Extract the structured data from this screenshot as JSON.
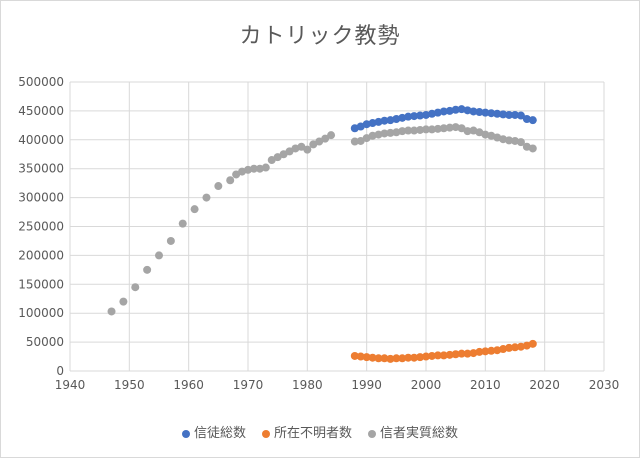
{
  "chart_data": {
    "type": "scatter",
    "title": "カトリック教勢",
    "xlabel": "",
    "ylabel": "",
    "xlim": [
      1940,
      2030
    ],
    "ylim": [
      0,
      500000
    ],
    "x_ticks": [
      "1940",
      "1950",
      "1960",
      "1970",
      "1980",
      "1990",
      "2000",
      "2010",
      "2020",
      "2030"
    ],
    "y_ticks": [
      "0",
      "50000",
      "100000",
      "150000",
      "200000",
      "250000",
      "300000",
      "350000",
      "400000",
      "450000",
      "500000"
    ],
    "grid": true,
    "legend_position": "bottom",
    "series": [
      {
        "name": "信徒総数",
        "color": "#4472c4",
        "points": [
          [
            1988,
            420000
          ],
          [
            1989,
            423000
          ],
          [
            1990,
            427000
          ],
          [
            1991,
            429000
          ],
          [
            1992,
            431000
          ],
          [
            1993,
            433000
          ],
          [
            1994,
            434000
          ],
          [
            1995,
            436000
          ],
          [
            1996,
            438000
          ],
          [
            1997,
            440000
          ],
          [
            1998,
            441000
          ],
          [
            1999,
            442000
          ],
          [
            2000,
            443000
          ],
          [
            2001,
            445000
          ],
          [
            2002,
            447000
          ],
          [
            2003,
            449000
          ],
          [
            2004,
            450000
          ],
          [
            2005,
            452000
          ],
          [
            2006,
            453000
          ],
          [
            2007,
            451000
          ],
          [
            2008,
            449000
          ],
          [
            2009,
            448000
          ],
          [
            2010,
            447000
          ],
          [
            2011,
            446000
          ],
          [
            2012,
            445000
          ],
          [
            2013,
            444000
          ],
          [
            2014,
            443000
          ],
          [
            2015,
            443000
          ],
          [
            2016,
            442000
          ],
          [
            2017,
            436000
          ],
          [
            2018,
            434000
          ]
        ]
      },
      {
        "name": "所在不明者数",
        "color": "#ed7d31",
        "points": [
          [
            1988,
            26000
          ],
          [
            1989,
            25000
          ],
          [
            1990,
            24000
          ],
          [
            1991,
            23000
          ],
          [
            1992,
            22000
          ],
          [
            1993,
            22000
          ],
          [
            1994,
            21000
          ],
          [
            1995,
            22000
          ],
          [
            1996,
            22000
          ],
          [
            1997,
            23000
          ],
          [
            1998,
            23000
          ],
          [
            1999,
            24000
          ],
          [
            2000,
            25000
          ],
          [
            2001,
            26000
          ],
          [
            2002,
            27000
          ],
          [
            2003,
            27000
          ],
          [
            2004,
            28000
          ],
          [
            2005,
            29000
          ],
          [
            2006,
            30000
          ],
          [
            2007,
            30000
          ],
          [
            2008,
            31000
          ],
          [
            2009,
            33000
          ],
          [
            2010,
            34000
          ],
          [
            2011,
            35000
          ],
          [
            2012,
            36000
          ],
          [
            2013,
            38000
          ],
          [
            2014,
            40000
          ],
          [
            2015,
            41000
          ],
          [
            2016,
            42000
          ],
          [
            2017,
            44000
          ],
          [
            2018,
            47000
          ]
        ]
      },
      {
        "name": "信者実質総数",
        "color": "#a5a5a5",
        "points": [
          [
            1947,
            103000
          ],
          [
            1949,
            120000
          ],
          [
            1951,
            145000
          ],
          [
            1953,
            175000
          ],
          [
            1955,
            200000
          ],
          [
            1957,
            225000
          ],
          [
            1959,
            255000
          ],
          [
            1961,
            280000
          ],
          [
            1963,
            300000
          ],
          [
            1965,
            320000
          ],
          [
            1967,
            330000
          ],
          [
            1968,
            340000
          ],
          [
            1969,
            345000
          ],
          [
            1970,
            348000
          ],
          [
            1971,
            350000
          ],
          [
            1972,
            350000
          ],
          [
            1973,
            352000
          ],
          [
            1974,
            365000
          ],
          [
            1975,
            370000
          ],
          [
            1976,
            375000
          ],
          [
            1977,
            380000
          ],
          [
            1978,
            385000
          ],
          [
            1979,
            388000
          ],
          [
            1980,
            383000
          ],
          [
            1981,
            392000
          ],
          [
            1982,
            397000
          ],
          [
            1983,
            402000
          ],
          [
            1984,
            408000
          ],
          [
            1988,
            397000
          ],
          [
            1989,
            398000
          ],
          [
            1990,
            403000
          ],
          [
            1991,
            407000
          ],
          [
            1992,
            409000
          ],
          [
            1993,
            411000
          ],
          [
            1994,
            412000
          ],
          [
            1995,
            413000
          ],
          [
            1996,
            415000
          ],
          [
            1997,
            416000
          ],
          [
            1998,
            416000
          ],
          [
            1999,
            417000
          ],
          [
            2000,
            418000
          ],
          [
            2001,
            418000
          ],
          [
            2002,
            419000
          ],
          [
            2003,
            420000
          ],
          [
            2004,
            421000
          ],
          [
            2005,
            422000
          ],
          [
            2006,
            420000
          ],
          [
            2007,
            415000
          ],
          [
            2008,
            416000
          ],
          [
            2009,
            413000
          ],
          [
            2010,
            409000
          ],
          [
            2011,
            407000
          ],
          [
            2012,
            404000
          ],
          [
            2013,
            401000
          ],
          [
            2014,
            399000
          ],
          [
            2015,
            398000
          ],
          [
            2016,
            396000
          ],
          [
            2017,
            388000
          ],
          [
            2018,
            385000
          ]
        ]
      }
    ]
  }
}
